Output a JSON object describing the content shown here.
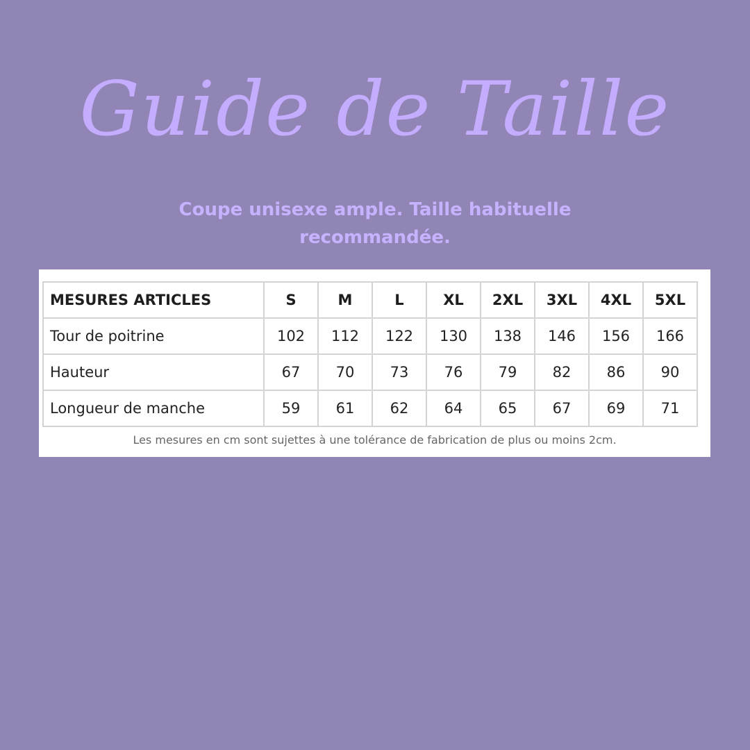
{
  "title": "Guide de Taille",
  "subtitle": "Coupe unisexe ample. Taille habituelle recommandée.",
  "table": {
    "header": "MESURES ARTICLES",
    "sizes": [
      "S",
      "M",
      "L",
      "XL",
      "2XL",
      "3XL",
      "4XL",
      "5XL"
    ],
    "rows": [
      {
        "label": "Tour de poitrine",
        "values": [
          "102",
          "112",
          "122",
          "130",
          "138",
          "146",
          "156",
          "166"
        ]
      },
      {
        "label": "Hauteur",
        "values": [
          "67",
          "70",
          "73",
          "76",
          "79",
          "82",
          "86",
          "90"
        ]
      },
      {
        "label": "Longueur de manche",
        "values": [
          "59",
          "61",
          "62",
          "64",
          "65",
          "67",
          "69",
          "71"
        ]
      }
    ],
    "note": "Les mesures en cm sont sujettes à une tolérance de fabrication de plus ou moins 2cm."
  },
  "colors": {
    "background": "#9185b6",
    "title": "#c4adff"
  }
}
